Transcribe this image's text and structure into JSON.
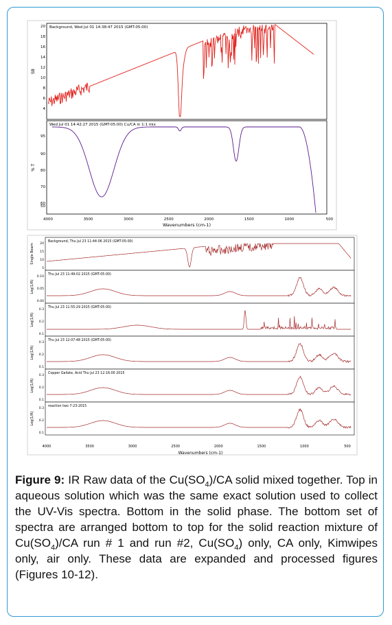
{
  "figure": {
    "top_panel": {
      "spectra": [
        {
          "header": "Background, Wed Jul 01 14:38:47 2015 (GMT-05:00)",
          "ylabel": "SB",
          "yticks": [
            "20",
            "18",
            "16",
            "14",
            "12",
            "10",
            "8",
            "6",
            "4"
          ]
        },
        {
          "header": "Wed Jul 01 14:42:27 2015 (GMT-05:00) Cu/CA in 1:1 mix",
          "ylabel": "% T",
          "yticks": [
            "95",
            "90",
            "80",
            "70",
            "60",
            "50"
          ]
        }
      ],
      "xticks": [
        "4000",
        "3500",
        "3000",
        "2500",
        "2000",
        "1500",
        "1000",
        "500"
      ],
      "xlabel": "Wavenumbers (cm-1)"
    },
    "bottom_panel": {
      "spectra": [
        {
          "header": "Background, Thu Jul 23 11:44:06 2015 (GMT-05:00)",
          "ylabel": "Single Beam",
          "yticks": [
            "20",
            "15",
            "10",
            "5"
          ]
        },
        {
          "header": "Thu Jul 23 11:49:02 2015 (GMT-05:00)",
          "ylabel": "Log(1/R)",
          "yticks": [
            "0.10",
            "0.05",
            "0.00"
          ]
        },
        {
          "header": "Thu Jul 23 11:55:29 2015 (GMT-05:00)",
          "ylabel": "Log(1/R)",
          "yticks": [
            "0.3",
            "0.2",
            "0.1"
          ]
        },
        {
          "header": "Thu Jul 23 12:07:48 2015 (GMT-05:00)",
          "ylabel": "Log(1/R)",
          "yticks": [
            "0.3",
            "0.2",
            "0.1"
          ]
        },
        {
          "header": "Copper Gallate, Acid Thu Jul 23 12:16:00 2015",
          "ylabel": "Log(1/R)",
          "yticks": [
            "0.3",
            "0.2",
            "0.1"
          ]
        },
        {
          "header": "reaction two 7-23-2015",
          "ylabel": "Log(1/R)",
          "yticks": [
            "0.3",
            "0.2",
            "0.1"
          ]
        }
      ],
      "xticks": [
        "4000",
        "3500",
        "3000",
        "2500",
        "2000",
        "1500",
        "1000",
        "500"
      ],
      "xlabel": "Wavenumbers (cm-1)"
    }
  },
  "caption": {
    "label": "Figure 9:",
    "p1": " IR Raw data of the Cu(SO",
    "sub1": "4",
    "p2": ")/CA solid mixed together. Top in aqueous solution which was the same exact solution used to collect the UV-Vis spectra. Bottom in the solid phase. The bottom set of spectra are arranged bottom to top for the solid reaction mixture of Cu(SO",
    "sub2": "4",
    "p3": ")/CA run # 1 and run #2, Cu(SO",
    "sub3": "4",
    "p4": ") only, CA only, Kimwipes only, air only. These data are expanded and processed figures (Figures 10-12)."
  },
  "colors": {
    "frame": "#2f9ad3",
    "top_single_beam": "#e0201a",
    "top_transmittance": "#5a1a8c",
    "bottom_traces": "#a52a2a"
  }
}
